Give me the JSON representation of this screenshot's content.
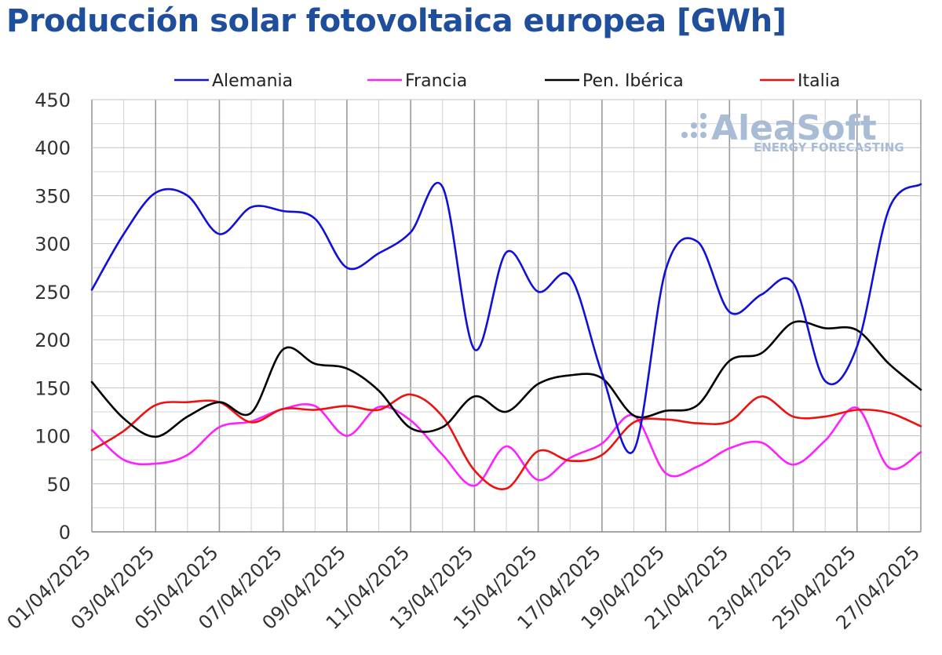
{
  "title": "Producción solar fotovoltaica europea [GWh]",
  "watermark": {
    "brand": "AleaSoft",
    "tagline": "ENERGY FORECASTING"
  },
  "chart_data": {
    "type": "line",
    "title": "Producción solar fotovoltaica europea [GWh]",
    "xlabel": "",
    "ylabel": "",
    "ylim": [
      0,
      450
    ],
    "yticks": [
      0,
      50,
      100,
      150,
      200,
      250,
      300,
      350,
      400,
      450
    ],
    "grid": true,
    "legend_position": "top",
    "x": [
      "01/04/2025",
      "02/04/2025",
      "03/04/2025",
      "04/04/2025",
      "05/04/2025",
      "06/04/2025",
      "07/04/2025",
      "08/04/2025",
      "09/04/2025",
      "10/04/2025",
      "11/04/2025",
      "12/04/2025",
      "13/04/2025",
      "14/04/2025",
      "15/04/2025",
      "16/04/2025",
      "17/04/2025",
      "18/04/2025",
      "19/04/2025",
      "20/04/2025",
      "21/04/2025",
      "22/04/2025",
      "23/04/2025",
      "24/04/2025",
      "25/04/2025",
      "26/04/2025",
      "27/04/2025"
    ],
    "xtick_labels": [
      "01/04/2025",
      "03/04/2025",
      "05/04/2025",
      "07/04/2025",
      "09/04/2025",
      "11/04/2025",
      "13/04/2025",
      "15/04/2025",
      "17/04/2025",
      "19/04/2025",
      "21/04/2025",
      "23/04/2025",
      "25/04/2025",
      "27/04/2025"
    ],
    "series": [
      {
        "name": "Alemania",
        "color": "#1010d8",
        "values": [
          252,
          310,
          353,
          350,
          310,
          338,
          334,
          326,
          275,
          290,
          312,
          359,
          190,
          291,
          250,
          266,
          165,
          85,
          273,
          302,
          229,
          247,
          259,
          157,
          193,
          336,
          362
        ]
      },
      {
        "name": "Francia",
        "color": "#ff20ff",
        "values": [
          106,
          75,
          71,
          80,
          109,
          115,
          128,
          131,
          100,
          130,
          116,
          80,
          48,
          89,
          54,
          77,
          92,
          121,
          61,
          68,
          87,
          93,
          70,
          95,
          129,
          67,
          83
        ]
      },
      {
        "name": "Pen. Ibérica",
        "color": "#000000",
        "values": [
          156,
          118,
          99,
          120,
          135,
          124,
          190,
          175,
          170,
          147,
          108,
          109,
          141,
          125,
          154,
          163,
          160,
          121,
          126,
          132,
          178,
          186,
          218,
          212,
          210,
          175,
          148
        ]
      },
      {
        "name": "Italia",
        "color": "#ee1111",
        "values": [
          85,
          105,
          132,
          135,
          135,
          114,
          128,
          127,
          131,
          127,
          143,
          120,
          64,
          45,
          84,
          74,
          80,
          114,
          117,
          113,
          115,
          141,
          120,
          120,
          127,
          124,
          110
        ]
      }
    ]
  }
}
